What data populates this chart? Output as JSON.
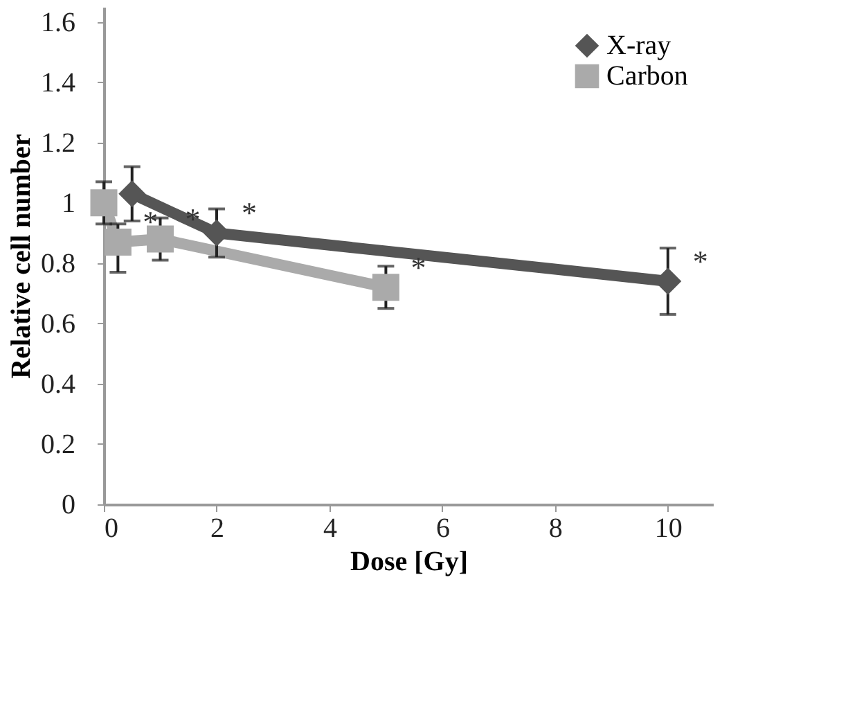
{
  "chart_data": {
    "type": "line",
    "xlabel": "Dose [Gy]",
    "ylabel": "Relative cell number",
    "xlim": [
      0,
      10.8
    ],
    "xticks": [
      0,
      2,
      4,
      6,
      8,
      10
    ],
    "ylim": [
      0,
      1.65
    ],
    "yticks": [
      0,
      0.2,
      0.4,
      0.6,
      0.8,
      1,
      1.2,
      1.4,
      1.6
    ],
    "grid": false,
    "legend": "top right",
    "line_style": "solid",
    "series": [
      {
        "name": "X-ray",
        "color": "#555555",
        "marker": "diamond",
        "x": [
          0.5,
          2,
          10
        ],
        "values": [
          1.03,
          0.9,
          0.74
        ],
        "errors": [
          0.09,
          0.08,
          0.11
        ]
      },
      {
        "name": "Carbon",
        "color": "#aaaaaa",
        "marker": "square",
        "x": [
          0,
          0.25,
          1,
          5
        ],
        "values": [
          1.0,
          0.87,
          0.88,
          0.72
        ],
        "errors": [
          0.07,
          [
            0.77,
            0.93
          ],
          0.07,
          0.07
        ]
      }
    ],
    "annotations": [
      {
        "text": "*",
        "x": 2,
        "y": 0.9
      },
      {
        "text": "*",
        "x": 10,
        "y": 0.74
      },
      {
        "text": "*",
        "x": 0.25,
        "y": 0.87
      },
      {
        "text": "*",
        "x": 1,
        "y": 0.88
      },
      {
        "text": "*",
        "x": 5,
        "y": 0.72
      }
    ]
  }
}
